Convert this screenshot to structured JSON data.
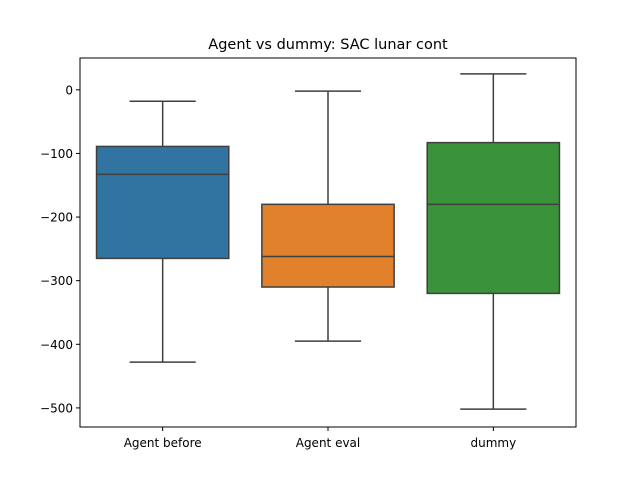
{
  "chart_data": {
    "type": "box",
    "title": "Agent vs dummy: SAC lunar cont",
    "xlabel": "",
    "ylabel": "",
    "categories": [
      "Agent before",
      "Agent eval",
      "dummy"
    ],
    "ylim": [
      -530,
      50
    ],
    "yticks": [
      0,
      -100,
      -200,
      -300,
      -400,
      -500
    ],
    "ytick_labels": [
      "0",
      "−100",
      "−200",
      "−300",
      "−400",
      "−500"
    ],
    "grid": false,
    "boxes": [
      {
        "category": "Agent before",
        "whisker_low": -428,
        "q1": -265,
        "median": -133,
        "q3": -89,
        "whisker_high": -18,
        "color": "#3274a1"
      },
      {
        "category": "Agent eval",
        "whisker_low": -395,
        "q1": -310,
        "median": -262,
        "q3": -180,
        "whisker_high": -2,
        "color": "#e1812c"
      },
      {
        "category": "dummy",
        "whisker_low": -502,
        "q1": -320,
        "median": -180,
        "q3": -83,
        "whisker_high": 25,
        "color": "#3a923a"
      }
    ],
    "line_color": "#3f3f3f"
  }
}
